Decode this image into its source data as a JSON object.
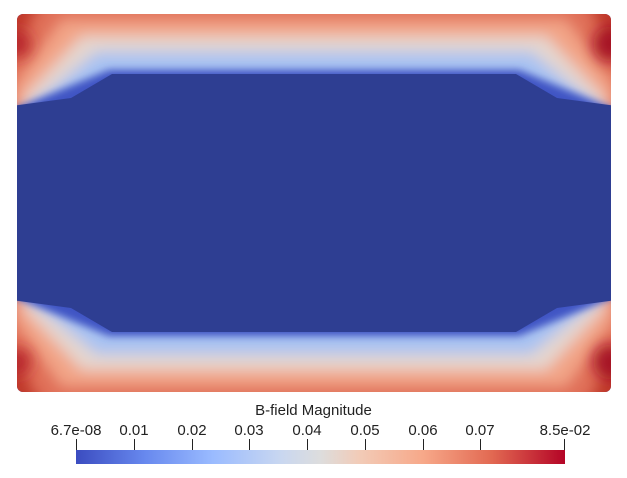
{
  "colorbar": {
    "title": "B-field Magnitude",
    "min_label": "6.7e-08",
    "max_label": "8.5e-02",
    "ticks": [
      "0.01",
      "0.02",
      "0.03",
      "0.04",
      "0.05",
      "0.06",
      "0.07"
    ],
    "colormap": "coolwarm",
    "colors": {
      "low": "#3b4cc0",
      "mid": "#dddddd",
      "high": "#b40426"
    }
  }
}
